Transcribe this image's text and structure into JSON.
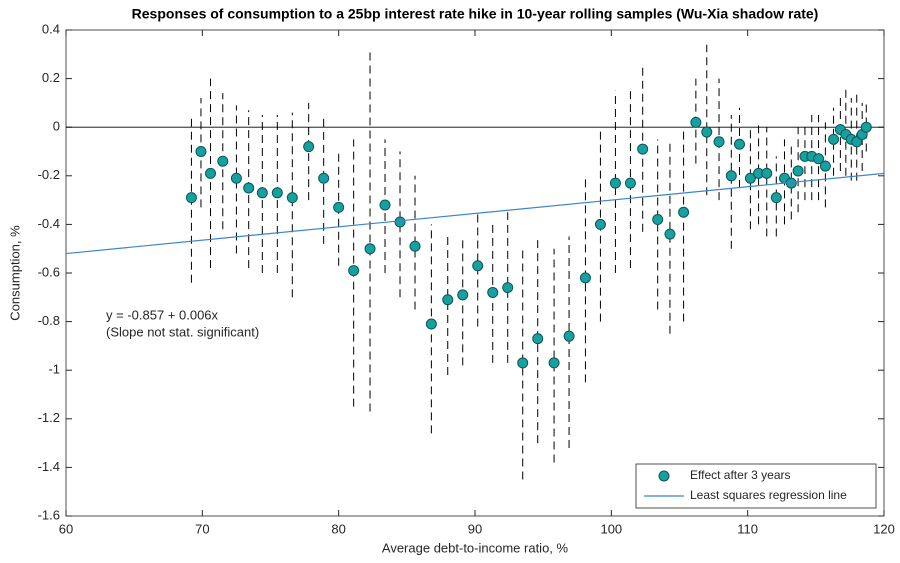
{
  "chart_data": {
    "type": "scatter",
    "title": "Responses of consumption to a 25bp interest rate hike in 10-year rolling samples (Wu-Xia shadow rate)",
    "x_label": "Average debt-to-income ratio, %",
    "y_label": "Consumption, %",
    "annotation": [
      "y = -0.857 + 0.006x",
      "(Slope not stat. significant)"
    ],
    "xlim": [
      60,
      120
    ],
    "xticks": [
      60,
      70,
      80,
      90,
      100,
      110,
      120
    ],
    "ylim": [
      -1.6,
      0.4
    ],
    "yticks": [
      -1.6,
      -1.4,
      -1.2,
      -1,
      -0.8,
      -0.6,
      -0.4,
      -0.2,
      0,
      0.2,
      0.4
    ],
    "reference_line": 0,
    "legend": "lower right",
    "series": [
      {
        "name": "Effect after 3 years",
        "color": "#17a0a0",
        "x": [
          69.2,
          69.9,
          70.6,
          71.5,
          72.5,
          73.4,
          74.4,
          75.5,
          76.6,
          77.8,
          78.9,
          80.0,
          81.1,
          82.3,
          83.4,
          84.5,
          85.6,
          86.8,
          88.0,
          89.1,
          90.2,
          91.3,
          92.4,
          93.5,
          94.6,
          95.8,
          96.9,
          98.1,
          99.2,
          100.3,
          101.4,
          102.3,
          103.4,
          104.3,
          105.3,
          106.2,
          107.0,
          107.9,
          108.8,
          109.4,
          110.2,
          110.8,
          111.4,
          112.1,
          112.7,
          113.2,
          113.7,
          114.2,
          114.7,
          115.2,
          115.7,
          116.3,
          116.8,
          117.2,
          117.6,
          118.0,
          118.4,
          118.7
        ],
        "values": [
          -0.29,
          -0.1,
          -0.19,
          -0.14,
          -0.21,
          -0.25,
          -0.27,
          -0.27,
          -0.29,
          -0.08,
          -0.21,
          -0.33,
          -0.59,
          -0.5,
          -0.32,
          -0.39,
          -0.49,
          -0.81,
          -0.71,
          -0.69,
          -0.57,
          -0.68,
          -0.66,
          -0.97,
          -0.87,
          -0.97,
          -0.86,
          -0.62,
          -0.4,
          -0.23,
          -0.23,
          -0.09,
          -0.38,
          -0.44,
          -0.35,
          0.02,
          -0.02,
          -0.06,
          -0.2,
          -0.07,
          -0.21,
          -0.19,
          -0.19,
          -0.29,
          -0.21,
          -0.23,
          -0.18,
          -0.12,
          -0.12,
          -0.13,
          -0.16,
          -0.05,
          -0.01,
          -0.03,
          -0.05,
          -0.06,
          -0.03,
          0.0
        ],
        "lower": [
          -0.64,
          -0.33,
          -0.58,
          -0.42,
          -0.52,
          -0.58,
          -0.6,
          -0.6,
          -0.7,
          -0.3,
          -0.48,
          -0.57,
          -1.15,
          -1.17,
          -0.6,
          -0.7,
          -0.75,
          -1.26,
          -1.02,
          -0.98,
          -0.82,
          -0.97,
          -0.97,
          -1.45,
          -1.3,
          -1.38,
          -1.32,
          -1.05,
          -0.8,
          -0.6,
          -0.58,
          -0.43,
          -0.75,
          -0.85,
          -0.8,
          -0.15,
          -0.28,
          -0.3,
          -0.5,
          -0.25,
          -0.42,
          -0.4,
          -0.45,
          -0.45,
          -0.4,
          -0.38,
          -0.35,
          -0.3,
          -0.3,
          -0.3,
          -0.33,
          -0.2,
          -0.18,
          -0.2,
          -0.22,
          -0.22,
          -0.18,
          -0.1
        ],
        "upper": [
          0.04,
          0.12,
          0.2,
          0.14,
          0.09,
          0.07,
          0.05,
          0.05,
          0.06,
          0.1,
          0.05,
          -0.1,
          -0.05,
          0.31,
          -0.05,
          -0.1,
          -0.2,
          -0.4,
          -0.45,
          -0.45,
          -0.35,
          -0.4,
          -0.35,
          -0.5,
          -0.45,
          -0.5,
          -0.45,
          -0.2,
          0.0,
          0.15,
          0.15,
          0.25,
          -0.05,
          -0.05,
          0.0,
          0.2,
          0.34,
          0.2,
          0.05,
          0.08,
          0.0,
          0.02,
          0.0,
          -0.12,
          -0.05,
          -0.08,
          0.0,
          0.02,
          0.05,
          0.05,
          0.02,
          0.08,
          0.13,
          0.16,
          0.12,
          0.14,
          0.1,
          0.1
        ]
      },
      {
        "name": "Least squares regression line",
        "color": "#3a86c8",
        "x": [
          60,
          120
        ],
        "values": [
          -0.52,
          -0.19
        ]
      }
    ]
  }
}
